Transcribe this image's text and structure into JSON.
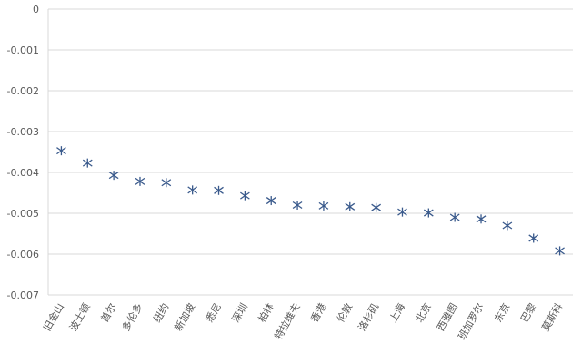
{
  "chart_data": {
    "type": "scatter",
    "title": "",
    "xlabel": "",
    "ylabel": "",
    "grid": true,
    "legend": "none",
    "marker": "asterisk",
    "marker_color": "#3a5a8c",
    "ylim": [
      -0.007,
      0
    ],
    "yticks": [
      0,
      -0.001,
      -0.002,
      -0.003,
      -0.004,
      -0.005,
      -0.006,
      -0.007
    ],
    "ytick_labels": [
      "0",
      "-0.001",
      "-0.002",
      "-0.003",
      "-0.004",
      "-0.005",
      "-0.006",
      "-0.007"
    ],
    "categories": [
      "旧金山",
      "波士顿",
      "首尔",
      "多伦多",
      "纽约",
      "新加坡",
      "悉尼",
      "深圳",
      "柏林",
      "特拉维夫",
      "香港",
      "伦敦",
      "洛杉矶",
      "上海",
      "北京",
      "西雅图",
      "班加罗尔",
      "东京",
      "巴黎",
      "莫斯科"
    ],
    "values": [
      -0.00347,
      -0.00377,
      -0.00407,
      -0.00422,
      -0.00425,
      -0.00443,
      -0.00444,
      -0.00457,
      -0.00469,
      -0.0048,
      -0.00482,
      -0.00484,
      -0.00486,
      -0.00497,
      -0.00499,
      -0.0051,
      -0.00514,
      -0.0053,
      -0.00561,
      -0.00592
    ]
  }
}
